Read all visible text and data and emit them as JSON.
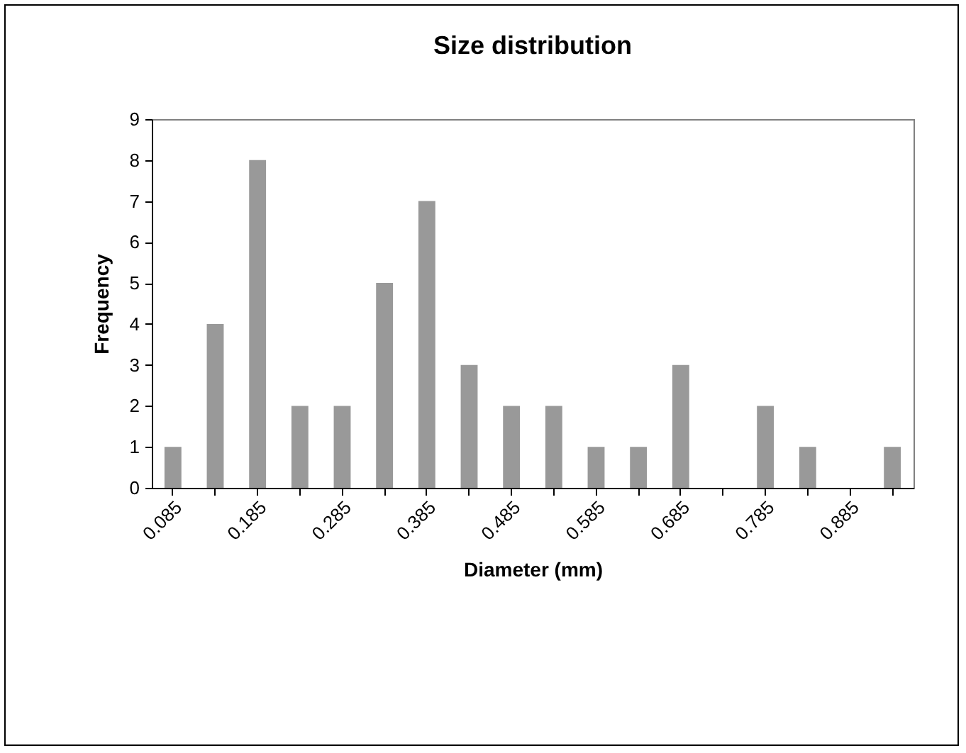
{
  "chart_data": {
    "type": "bar",
    "title": "Size distribution",
    "xlabel": "Diameter (mm)",
    "ylabel": "Frequency",
    "categories": [
      "0.085",
      null,
      "0.185",
      null,
      "0.285",
      null,
      "0.385",
      null,
      "0.485",
      null,
      "0.585",
      null,
      "0.685",
      null,
      "0.785",
      null,
      "0.885",
      null
    ],
    "series": [
      {
        "color": "#999999",
        "values": [
          1,
          4,
          8,
          2,
          2,
          5,
          7,
          3,
          2,
          2,
          1,
          1,
          3,
          0,
          2,
          1,
          0,
          1
        ]
      }
    ],
    "ylim": [
      0,
      9
    ],
    "yticks": [
      0,
      1,
      2,
      3,
      4,
      5,
      6,
      7,
      8,
      9
    ],
    "grid": false,
    "legend": false
  }
}
